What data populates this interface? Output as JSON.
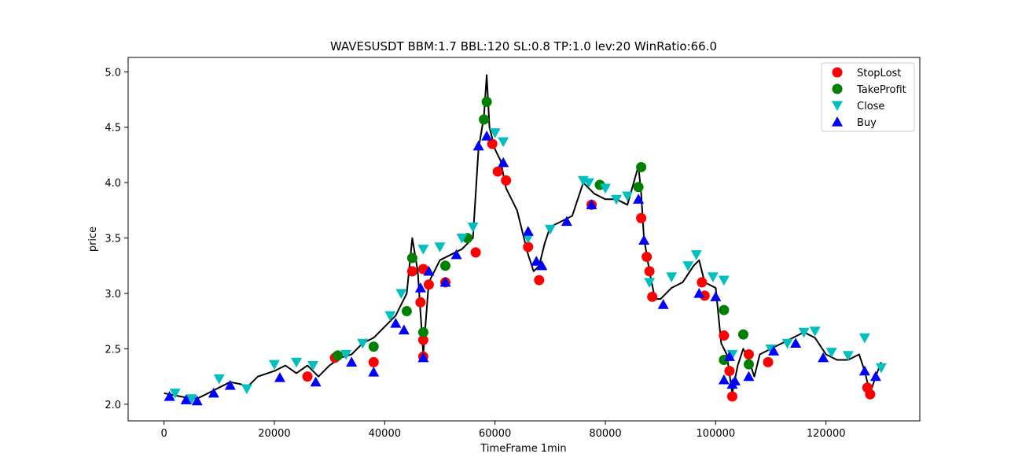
{
  "chart_data": {
    "type": "line",
    "title": "WAVESUSDT BBM:1.7 BBL:120 SL:0.8 TP:1.0 lev:20 WinRatio:66.0",
    "xlabel": "TimeFrame 1min",
    "ylabel": "price",
    "xlim": [
      -6500,
      137000
    ],
    "ylim": [
      1.85,
      5.13
    ],
    "x_ticks": [
      0,
      20000,
      40000,
      60000,
      80000,
      100000,
      120000
    ],
    "y_ticks": [
      2.0,
      2.5,
      3.0,
      3.5,
      4.0,
      4.5,
      5.0
    ],
    "legend_position": "top-right",
    "colors": {
      "price": "#000000",
      "stoplost": "#ff0000",
      "takeprofit": "#008000",
      "close": "#00bfbf",
      "buy": "#0000ff"
    },
    "series": [
      {
        "name": "price",
        "x": [
          0,
          2000,
          4000,
          6000,
          8000,
          10000,
          12000,
          14000,
          15000,
          17000,
          20000,
          22000,
          24000,
          26000,
          28000,
          30000,
          32000,
          34000,
          36000,
          38000,
          40000,
          42000,
          44000,
          45000,
          46000,
          47000,
          48000,
          50000,
          52000,
          54000,
          56000,
          57000,
          58000,
          58500,
          59000,
          60000,
          61000,
          62000,
          63000,
          64000,
          65000,
          66000,
          67000,
          68000,
          69000,
          70000,
          72000,
          74000,
          76000,
          78000,
          80000,
          82000,
          84000,
          86000,
          86500,
          87000,
          88000,
          89000,
          90000,
          92000,
          94000,
          96000,
          97000,
          98000,
          100000,
          101000,
          102000,
          103000,
          104000,
          105000,
          106000,
          107000,
          108000,
          110000,
          112000,
          114000,
          116000,
          118000,
          120000,
          122000,
          124000,
          126000,
          127000,
          128000,
          129000,
          130000
        ],
        "y": [
          2.1,
          2.08,
          2.06,
          2.05,
          2.1,
          2.15,
          2.2,
          2.18,
          2.15,
          2.25,
          2.3,
          2.35,
          2.28,
          2.35,
          2.25,
          2.35,
          2.42,
          2.45,
          2.55,
          2.6,
          2.7,
          2.8,
          3.0,
          3.5,
          3.2,
          2.45,
          3.1,
          3.3,
          3.35,
          3.4,
          3.5,
          4.3,
          4.6,
          4.97,
          4.5,
          4.3,
          4.2,
          3.95,
          3.85,
          3.75,
          3.55,
          3.35,
          3.2,
          3.25,
          3.45,
          3.6,
          3.65,
          3.7,
          4.0,
          3.9,
          3.85,
          3.85,
          3.8,
          4.15,
          3.9,
          3.5,
          3.2,
          2.95,
          2.95,
          3.05,
          3.1,
          3.25,
          3.3,
          3.1,
          3.05,
          2.55,
          2.45,
          2.1,
          2.35,
          2.5,
          2.4,
          2.25,
          2.45,
          2.5,
          2.55,
          2.6,
          2.65,
          2.6,
          2.45,
          2.4,
          2.4,
          2.45,
          2.3,
          2.1,
          2.25,
          2.38
        ]
      },
      {
        "name": "StopLost",
        "x": [
          26000,
          31000,
          38000,
          45000,
          46500,
          47000,
          47000,
          47000,
          48000,
          51000,
          56500,
          59500,
          60500,
          62000,
          66000,
          68000,
          77500,
          86500,
          87500,
          88000,
          88500,
          97500,
          98000,
          101500,
          102500,
          103000,
          106000,
          109500,
          127500,
          128000
        ],
        "y": [
          2.25,
          2.42,
          2.38,
          3.2,
          2.92,
          2.58,
          2.43,
          3.22,
          3.08,
          3.1,
          3.37,
          4.35,
          4.1,
          4.02,
          3.42,
          3.12,
          3.8,
          3.68,
          3.33,
          3.2,
          2.97,
          3.1,
          2.98,
          2.62,
          2.3,
          2.07,
          2.45,
          2.38,
          2.15,
          2.09
        ]
      },
      {
        "name": "TakeProfit",
        "x": [
          31500,
          38000,
          44000,
          45000,
          47000,
          51000,
          55000,
          58000,
          58500,
          79000,
          86000,
          86500,
          101500,
          101500,
          105000,
          106000
        ],
        "y": [
          2.44,
          2.52,
          2.84,
          3.32,
          2.65,
          3.25,
          3.5,
          4.57,
          4.73,
          3.98,
          3.96,
          4.14,
          2.85,
          2.4,
          2.63,
          2.36
        ]
      },
      {
        "name": "Close",
        "x": [
          2000,
          5000,
          10000,
          15000,
          20000,
          24000,
          27000,
          33000,
          36000,
          41000,
          43000,
          47000,
          50000,
          54000,
          56000,
          60000,
          61500,
          66000,
          70000,
          76000,
          77000,
          80000,
          82000,
          84000,
          88000,
          92000,
          95000,
          96500,
          99500,
          101500,
          103000,
          110000,
          113000,
          116000,
          118000,
          121000,
          124000,
          127000,
          130000
        ],
        "y": [
          2.1,
          2.05,
          2.23,
          2.14,
          2.36,
          2.38,
          2.35,
          2.45,
          2.55,
          2.8,
          3.0,
          3.4,
          3.42,
          3.5,
          3.6,
          4.45,
          4.37,
          3.5,
          3.58,
          4.02,
          4.0,
          3.95,
          3.85,
          3.88,
          3.1,
          3.15,
          3.25,
          3.35,
          3.15,
          3.12,
          2.45,
          2.5,
          2.55,
          2.65,
          2.66,
          2.47,
          2.44,
          2.6,
          2.33
        ]
      },
      {
        "name": "Buy",
        "x": [
          1000,
          4000,
          6000,
          9000,
          12000,
          21000,
          27500,
          34000,
          38000,
          42000,
          43500,
          46500,
          47000,
          48000,
          51000,
          53000,
          57000,
          58500,
          61500,
          66000,
          67500,
          68500,
          73000,
          77500,
          86000,
          87000,
          90500,
          97000,
          100000,
          101500,
          102500,
          103000,
          103500,
          106000,
          110500,
          114500,
          119500,
          127000,
          129000
        ],
        "y": [
          2.07,
          2.04,
          2.03,
          2.1,
          2.17,
          2.24,
          2.2,
          2.38,
          2.29,
          2.73,
          2.67,
          3.05,
          2.42,
          3.2,
          3.1,
          3.35,
          4.33,
          4.42,
          4.18,
          3.56,
          3.29,
          3.25,
          3.65,
          3.8,
          3.85,
          3.48,
          2.9,
          3.0,
          2.97,
          2.22,
          2.43,
          2.18,
          2.21,
          2.25,
          2.48,
          2.55,
          2.42,
          2.3,
          2.25
        ]
      }
    ]
  }
}
